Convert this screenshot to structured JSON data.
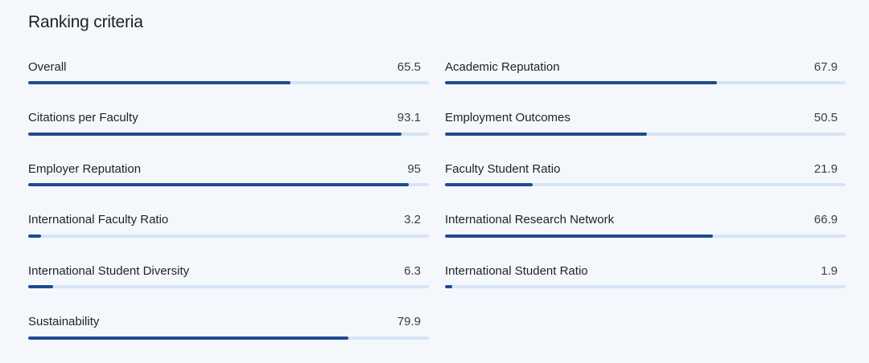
{
  "title": "Ranking criteria",
  "colors": {
    "background": "#f4f8fd",
    "track": "#d6e4f5",
    "fill": "#1e4b8f"
  },
  "metrics": [
    {
      "label": "Overall",
      "value": "65.5",
      "score": 65.5
    },
    {
      "label": "Academic Reputation",
      "value": "67.9",
      "score": 67.9
    },
    {
      "label": "Citations per Faculty",
      "value": "93.1",
      "score": 93.1
    },
    {
      "label": "Employment Outcomes",
      "value": "50.5",
      "score": 50.5
    },
    {
      "label": "Employer Reputation",
      "value": "95",
      "score": 95
    },
    {
      "label": "Faculty Student Ratio",
      "value": "21.9",
      "score": 21.9
    },
    {
      "label": "International Faculty Ratio",
      "value": "3.2",
      "score": 3.2
    },
    {
      "label": "International Research Network",
      "value": "66.9",
      "score": 66.9
    },
    {
      "label": "International Student Diversity",
      "value": "6.3",
      "score": 6.3
    },
    {
      "label": "International Student Ratio",
      "value": "1.9",
      "score": 1.9
    },
    {
      "label": "Sustainability",
      "value": "79.9",
      "score": 79.9
    }
  ]
}
